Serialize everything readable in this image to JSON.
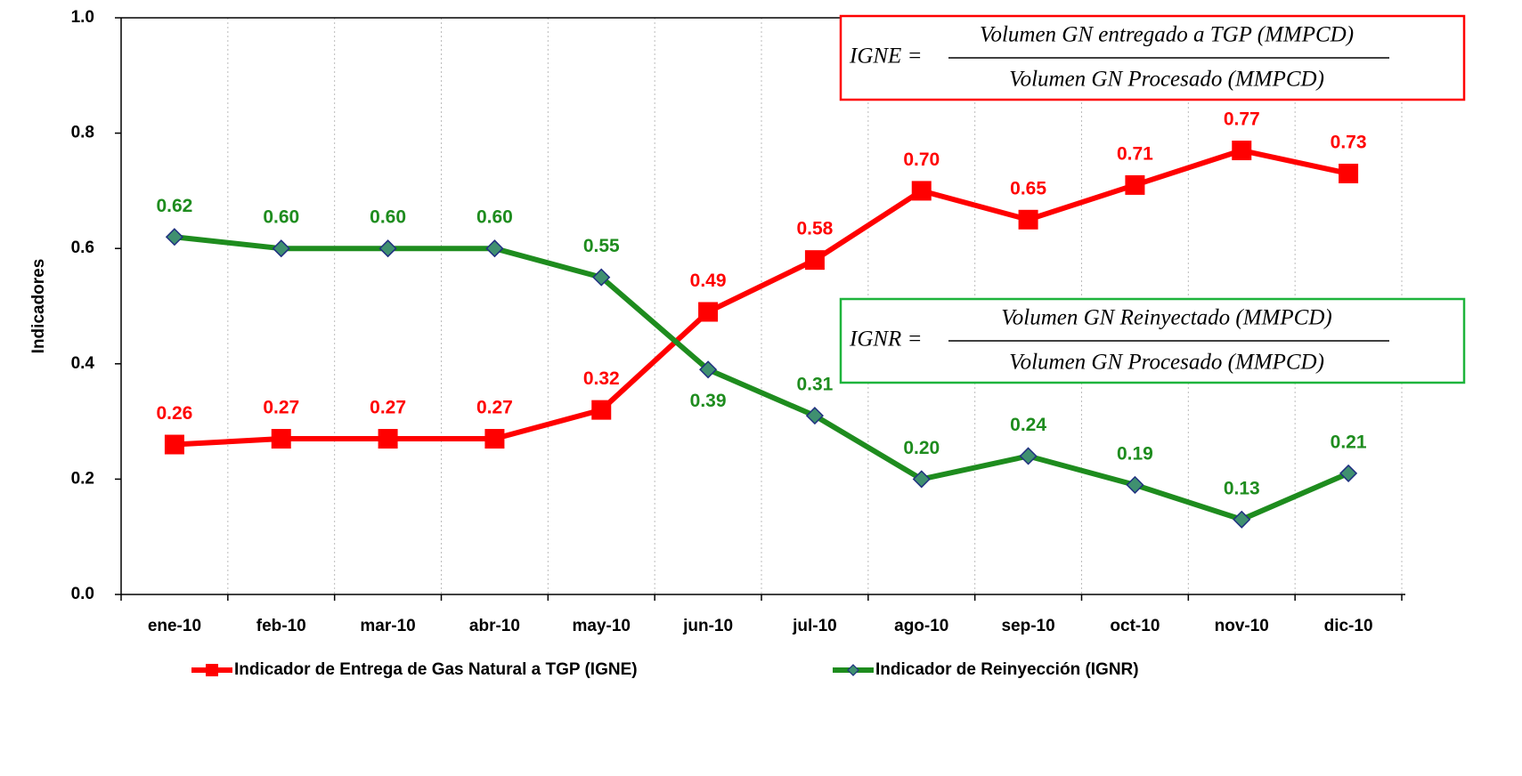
{
  "chart_data": {
    "type": "line",
    "y_label": "Indicadores",
    "categories": [
      "ene-10",
      "feb-10",
      "mar-10",
      "abr-10",
      "may-10",
      "jun-10",
      "jul-10",
      "ago-10",
      "sep-10",
      "oct-10",
      "nov-10",
      "dic-10"
    ],
    "series": [
      {
        "name": "Indicador de Entrega de Gas Natural a TGP (IGNE)",
        "color": "#ff0000",
        "marker": "square",
        "values": [
          0.26,
          0.27,
          0.27,
          0.27,
          0.32,
          0.49,
          0.58,
          0.7,
          0.65,
          0.71,
          0.77,
          0.73
        ],
        "value_labels": [
          "0.26",
          "0.27",
          "0.27",
          "0.27",
          "0.32",
          "0.49",
          "0.58",
          "0.70",
          "0.65",
          "0.71",
          "0.77",
          "0.73"
        ]
      },
      {
        "name": "Indicador de Reinyección (IGNR)",
        "color": "#1e8c1e",
        "marker": "diamond",
        "values": [
          0.62,
          0.6,
          0.6,
          0.6,
          0.55,
          0.39,
          0.31,
          0.2,
          0.24,
          0.19,
          0.13,
          0.21
        ],
        "value_labels": [
          "0.62",
          "0.60",
          "0.60",
          "0.60",
          "0.55",
          "0.39",
          "0.31",
          "0.20",
          "0.24",
          "0.19",
          "0.13",
          "0.21"
        ]
      }
    ],
    "ylim": [
      0,
      1
    ],
    "yticks": [
      {
        "value": 0,
        "label": "0.0"
      },
      0.2,
      0.4,
      0.6,
      0.8,
      {
        "value": 1,
        "label": "1.0"
      }
    ],
    "grid": true,
    "legend": "bottom",
    "annotations": [
      {
        "lhs": "IGNE =",
        "numerator": "Volumen GN entregado a TGP (MMPCD)",
        "denominator": "Volumen GN Procesado (MMPCD)",
        "color": "#ff0000"
      },
      {
        "lhs": "IGNR =",
        "numerator": "Volumen GN Reinyectado (MMPCD)",
        "denominator": "Volumen GN Procesado (MMPCD)",
        "color": "#1eb43c"
      }
    ]
  }
}
